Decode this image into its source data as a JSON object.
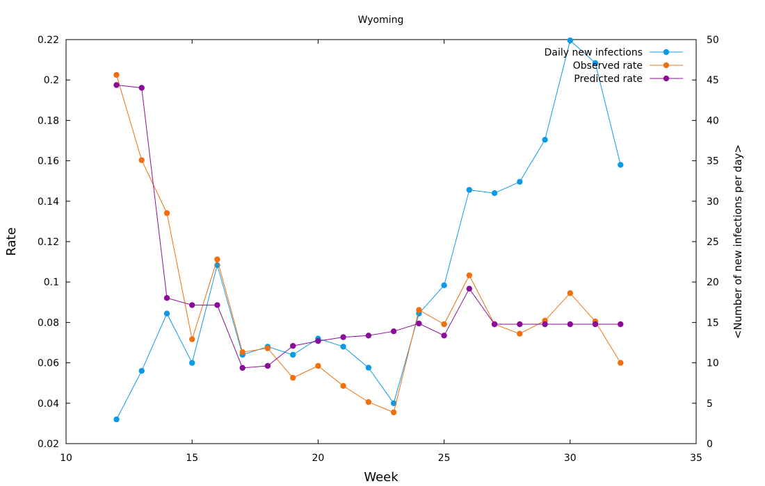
{
  "chart_data": {
    "type": "line",
    "title": "Wyoming",
    "xlabel": "Week",
    "ylabel": "Rate",
    "y2label": "<Number of new infections per day>",
    "xlim": [
      10,
      35
    ],
    "ylim": [
      0.02,
      0.22
    ],
    "y2lim": [
      0,
      50
    ],
    "xticks": [
      10,
      15,
      20,
      25,
      30,
      35
    ],
    "yticks": [
      0.02,
      0.04,
      0.06,
      0.08,
      0.1,
      0.12,
      0.14,
      0.16,
      0.18,
      0.2,
      0.22
    ],
    "y2ticks": [
      0,
      5,
      10,
      15,
      20,
      25,
      30,
      35,
      40,
      45,
      50
    ],
    "legend_position": "top-right",
    "grid": false,
    "series": [
      {
        "name": "Daily new infections",
        "axis": "y2",
        "color": "#0b9be6",
        "x": [
          12,
          13,
          14,
          15,
          16,
          17,
          18,
          19,
          20,
          21,
          22,
          23,
          24,
          25,
          26,
          27,
          28,
          29,
          30,
          31,
          32
        ],
        "values": [
          3.0,
          9.0,
          16.1,
          10.0,
          22.1,
          11.0,
          12.0,
          11.0,
          13.0,
          12.0,
          9.4,
          5.0,
          16.1,
          19.6,
          31.4,
          31.0,
          32.4,
          37.6,
          49.9,
          47.1,
          34.5
        ]
      },
      {
        "name": "Observed rate",
        "axis": "y",
        "color": "#f07010",
        "x": [
          12,
          13,
          14,
          15,
          16,
          17,
          18,
          19,
          20,
          21,
          22,
          23,
          24,
          25,
          26,
          27,
          28,
          29,
          30,
          31,
          32
        ],
        "values": [
          0.2025,
          0.1603,
          0.1341,
          0.0717,
          0.1112,
          0.0653,
          0.0672,
          0.0526,
          0.0585,
          0.0486,
          0.0406,
          0.0355,
          0.0862,
          0.0791,
          0.1033,
          0.0791,
          0.0744,
          0.0809,
          0.0945,
          0.0805,
          0.06
        ]
      },
      {
        "name": "Predicted rate",
        "axis": "y",
        "color": "#8b0e9a",
        "x": [
          12,
          13,
          14,
          15,
          16,
          17,
          18,
          19,
          20,
          21,
          22,
          23,
          24,
          25,
          26,
          27,
          28,
          29,
          30,
          31,
          32
        ],
        "values": [
          0.1975,
          0.1961,
          0.0921,
          0.0886,
          0.0886,
          0.0575,
          0.0585,
          0.0684,
          0.0708,
          0.0727,
          0.0735,
          0.0756,
          0.0795,
          0.0735,
          0.0967,
          0.0791,
          0.0791,
          0.0791,
          0.0791,
          0.0791,
          0.0791
        ]
      }
    ]
  }
}
